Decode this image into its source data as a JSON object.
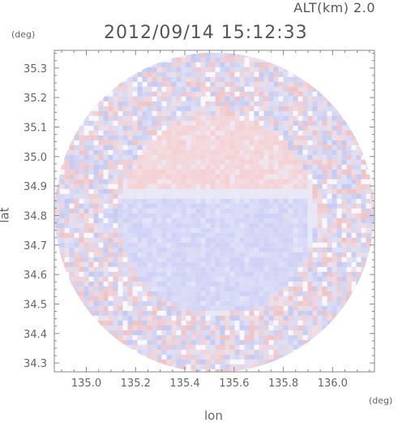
{
  "header": {
    "altitude_label": "ALT(km) 2.0",
    "timestamp": "2012/09/14 15:12:33"
  },
  "chart_data": {
    "type": "heatmap",
    "title": "2012/09/14 15:12:33",
    "subtitle": "ALT(km) 2.0",
    "xlabel": "lon",
    "ylabel": "lat",
    "x_unit": "(deg)",
    "y_unit": "(deg)",
    "xlim": [
      134.87,
      136.17
    ],
    "ylim": [
      34.27,
      35.36
    ],
    "x_ticks": [
      "135.0",
      "135.2",
      "135.4",
      "135.6",
      "135.8",
      "136.0"
    ],
    "x_tick_values": [
      135.0,
      135.2,
      135.4,
      135.6,
      135.8,
      136.0
    ],
    "y_ticks": [
      "34.3",
      "34.4",
      "34.5",
      "34.6",
      "34.7",
      "34.8",
      "34.9",
      "35.0",
      "35.1",
      "35.2",
      "35.3"
    ],
    "y_tick_values": [
      34.3,
      34.4,
      34.5,
      34.6,
      34.7,
      34.8,
      34.9,
      35.0,
      35.1,
      35.2,
      35.3
    ],
    "radar_center": [
      135.52,
      34.81
    ],
    "regions": [
      {
        "area": "north",
        "sign": "positive",
        "color": "#f4c8c8"
      },
      {
        "area": "center-south",
        "sign": "negative",
        "color": "#c8ccf4"
      },
      {
        "area": "outer-ring",
        "sign": "mixed",
        "color": "#e8e8f4"
      }
    ],
    "grid": false
  }
}
